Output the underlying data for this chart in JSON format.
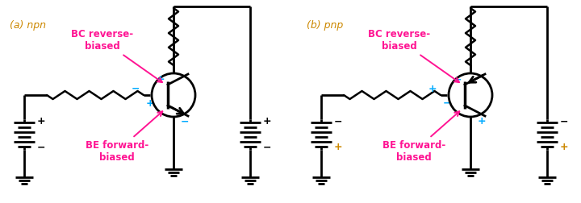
{
  "bg_color": "#ffffff",
  "text_color_magenta": "#ff1493",
  "text_color_cyan": "#00aaff",
  "text_color_orange": "#cc8800",
  "npn_label": "(a) npn",
  "pnp_label": "(b) pnp",
  "bc_label": "BC reverse-\nbiased",
  "be_label": "BE forward-\nbiased"
}
